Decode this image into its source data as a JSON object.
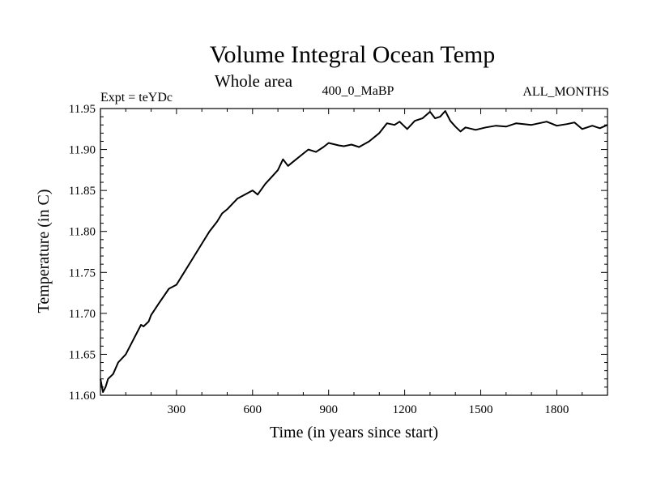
{
  "chart_data": {
    "type": "line",
    "title": "Volume Integral Ocean Temp",
    "subtitle": "Whole area",
    "experiment_label": "Expt = teYDc",
    "run_label": "400_0_MaBP",
    "months_label": "ALL_MONTHS",
    "xlabel": "Time (in years since start)",
    "ylabel": "Temperature (in C)",
    "xlim": [
      0,
      2000
    ],
    "ylim": [
      11.6,
      11.95
    ],
    "xticks": [
      300,
      600,
      900,
      1200,
      1500,
      1800
    ],
    "xtick_labels": [
      "300",
      "600",
      "900",
      "1200",
      "1500",
      "1800"
    ],
    "yticks": [
      11.6,
      11.65,
      11.7,
      11.75,
      11.8,
      11.85,
      11.9,
      11.95
    ],
    "ytick_labels": [
      "11.60",
      "11.65",
      "11.70",
      "11.75",
      "11.80",
      "11.85",
      "11.90",
      "11.95"
    ],
    "grid": false,
    "series": [
      {
        "name": "Volume Integral Ocean Temp",
        "color": "#000000",
        "x": [
          0,
          10,
          20,
          30,
          50,
          70,
          100,
          130,
          160,
          170,
          190,
          200,
          230,
          270,
          300,
          320,
          360,
          400,
          430,
          460,
          480,
          500,
          540,
          600,
          620,
          650,
          680,
          700,
          720,
          740,
          760,
          800,
          820,
          850,
          880,
          900,
          940,
          960,
          990,
          1020,
          1060,
          1100,
          1130,
          1160,
          1180,
          1210,
          1240,
          1270,
          1300,
          1320,
          1340,
          1360,
          1380,
          1400,
          1420,
          1440,
          1480,
          1520,
          1560,
          1600,
          1640,
          1700,
          1760,
          1800,
          1840,
          1870,
          1900,
          1940,
          1970,
          2000
        ],
        "values": [
          11.62,
          11.604,
          11.61,
          11.62,
          11.626,
          11.64,
          11.65,
          11.668,
          11.686,
          11.684,
          11.69,
          11.698,
          11.712,
          11.73,
          11.735,
          11.745,
          11.765,
          11.785,
          11.8,
          11.812,
          11.822,
          11.827,
          11.84,
          11.85,
          11.845,
          11.858,
          11.868,
          11.875,
          11.888,
          11.88,
          11.885,
          11.895,
          11.9,
          11.897,
          11.903,
          11.908,
          11.905,
          11.904,
          11.906,
          11.903,
          11.91,
          11.92,
          11.932,
          11.93,
          11.934,
          11.925,
          11.935,
          11.938,
          11.946,
          11.938,
          11.94,
          11.947,
          11.935,
          11.928,
          11.922,
          11.927,
          11.924,
          11.927,
          11.929,
          11.928,
          11.932,
          11.93,
          11.934,
          11.929,
          11.931,
          11.933,
          11.925,
          11.929,
          11.926,
          11.93
        ]
      }
    ]
  }
}
